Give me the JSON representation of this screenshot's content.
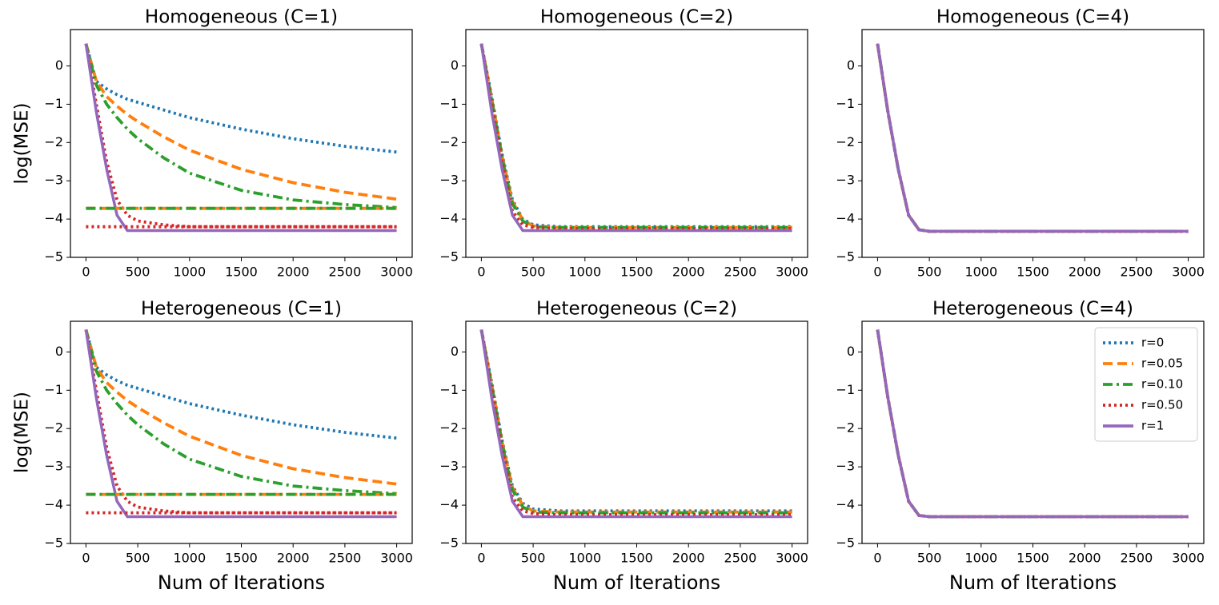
{
  "chart_data": [
    {
      "type": "line",
      "title": "Homogeneous (C=1)",
      "ylabel": "log(MSE)",
      "x": [
        0,
        100,
        200,
        300,
        400,
        500,
        750,
        1000,
        1500,
        2000,
        2500,
        3000
      ],
      "xlim": [
        -150,
        3150
      ],
      "xticks": [
        0,
        500,
        1000,
        1500,
        2000,
        2500,
        3000
      ],
      "ylim": [
        -5,
        0.95
      ],
      "yticks": [
        {
          "value": -5,
          "label": "−5"
        },
        {
          "value": -4,
          "label": "−4"
        },
        {
          "value": -3,
          "label": "−3"
        },
        {
          "value": -2,
          "label": "−2"
        },
        {
          "value": -1,
          "label": "−1"
        },
        0
      ],
      "series": [
        {
          "name": "r=0",
          "color": "#1f77b4",
          "dash": "dotted",
          "values": [
            0.58,
            -0.4,
            -0.6,
            -0.75,
            -0.87,
            -0.95,
            -1.15,
            -1.35,
            -1.65,
            -1.9,
            -2.1,
            -2.25
          ]
        },
        {
          "name": "r=0.05",
          "color": "#ff7f0e",
          "dash": "dashed",
          "values": [
            0.58,
            -0.4,
            -0.8,
            -1.05,
            -1.27,
            -1.45,
            -1.85,
            -2.2,
            -2.7,
            -3.05,
            -3.3,
            -3.48
          ]
        },
        {
          "name": "r=0.10",
          "color": "#2ca02c",
          "dash": "dashdot",
          "values": [
            0.58,
            -0.5,
            -1.0,
            -1.35,
            -1.65,
            -1.9,
            -2.4,
            -2.8,
            -3.25,
            -3.5,
            -3.62,
            -3.7
          ]
        },
        {
          "name": "r=0.50",
          "color": "#d62728",
          "dash": "dotted",
          "values": [
            0.58,
            -1.0,
            -2.5,
            -3.5,
            -3.9,
            -4.05,
            -4.15,
            -4.2,
            -4.2,
            -4.2,
            -4.2,
            -4.2
          ]
        },
        {
          "name": "r=1",
          "color": "#9467bd",
          "dash": "solid",
          "values": [
            0.58,
            -1.2,
            -2.7,
            -3.9,
            -4.3,
            -4.3,
            -4.3,
            -4.3,
            -4.3,
            -4.3,
            -4.3,
            -4.3
          ]
        },
        {
          "color": "#ff7f0e",
          "dash": "dashed",
          "x": [
            0,
            3000
          ],
          "values": [
            -3.72,
            -3.72
          ]
        },
        {
          "color": "#2ca02c",
          "dash": "dashdot",
          "x": [
            0,
            3000
          ],
          "values": [
            -3.72,
            -3.72
          ]
        },
        {
          "color": "#d62728",
          "dash": "dotted",
          "x": [
            0,
            3000
          ],
          "values": [
            -4.2,
            -4.2
          ]
        }
      ]
    },
    {
      "type": "line",
      "title": "Homogeneous (C=2)",
      "x": [
        0,
        100,
        200,
        300,
        400,
        500,
        750,
        1000,
        1500,
        2000,
        2500,
        3000
      ],
      "xlim": [
        -150,
        3150
      ],
      "xticks": [
        0,
        500,
        1000,
        1500,
        2000,
        2500,
        3000
      ],
      "ylim": [
        -5,
        0.95
      ],
      "yticks": [
        {
          "value": -5,
          "label": "−5"
        },
        {
          "value": -4,
          "label": "−4"
        },
        {
          "value": -3,
          "label": "−3"
        },
        {
          "value": -2,
          "label": "−2"
        },
        {
          "value": -1,
          "label": "−1"
        },
        0
      ],
      "series": [
        {
          "name": "r=0",
          "color": "#1f77b4",
          "dash": "dotted",
          "values": [
            0.58,
            -0.8,
            -2.3,
            -3.5,
            -4.0,
            -4.15,
            -4.2,
            -4.2,
            -4.2,
            -4.2,
            -4.2,
            -4.2
          ]
        },
        {
          "name": "r=0.05",
          "color": "#ff7f0e",
          "dash": "dashed",
          "values": [
            0.58,
            -0.85,
            -2.35,
            -3.55,
            -4.02,
            -4.18,
            -4.22,
            -4.22,
            -4.22,
            -4.22,
            -4.22,
            -4.22
          ]
        },
        {
          "name": "r=0.10",
          "color": "#2ca02c",
          "dash": "dashdot",
          "values": [
            0.58,
            -0.9,
            -2.4,
            -3.6,
            -4.05,
            -4.2,
            -4.22,
            -4.22,
            -4.22,
            -4.22,
            -4.22,
            -4.22
          ]
        },
        {
          "name": "r=0.50",
          "color": "#d62728",
          "dash": "dotted",
          "values": [
            0.58,
            -1.0,
            -2.5,
            -3.8,
            -4.15,
            -4.22,
            -4.25,
            -4.25,
            -4.25,
            -4.25,
            -4.25,
            -4.25
          ]
        },
        {
          "name": "r=1",
          "color": "#9467bd",
          "dash": "solid",
          "values": [
            0.58,
            -1.2,
            -2.7,
            -3.9,
            -4.3,
            -4.3,
            -4.3,
            -4.3,
            -4.3,
            -4.3,
            -4.3,
            -4.3
          ]
        }
      ]
    },
    {
      "type": "line",
      "title": "Homogeneous (C=4)",
      "x": [
        0,
        100,
        200,
        300,
        400,
        500,
        750,
        1000,
        1500,
        2000,
        2500,
        3000
      ],
      "xlim": [
        -150,
        3150
      ],
      "xticks": [
        0,
        500,
        1000,
        1500,
        2000,
        2500,
        3000
      ],
      "ylim": [
        -5,
        0.95
      ],
      "yticks": [
        {
          "value": -5,
          "label": "−5"
        },
        {
          "value": -4,
          "label": "−4"
        },
        {
          "value": -3,
          "label": "−3"
        },
        {
          "value": -2,
          "label": "−2"
        },
        {
          "value": -1,
          "label": "−1"
        },
        0
      ],
      "series": [
        {
          "name": "r=0",
          "color": "#1f77b4",
          "dash": "dotted",
          "values": [
            0.58,
            -1.2,
            -2.7,
            -3.9,
            -4.28,
            -4.32,
            -4.32,
            -4.32,
            -4.32,
            -4.32,
            -4.32,
            -4.32
          ]
        },
        {
          "name": "r=0.05",
          "color": "#ff7f0e",
          "dash": "dashed",
          "values": [
            0.58,
            -1.2,
            -2.7,
            -3.9,
            -4.28,
            -4.32,
            -4.32,
            -4.32,
            -4.32,
            -4.32,
            -4.32,
            -4.32
          ]
        },
        {
          "name": "r=0.10",
          "color": "#2ca02c",
          "dash": "dashdot",
          "values": [
            0.58,
            -1.2,
            -2.7,
            -3.9,
            -4.28,
            -4.32,
            -4.32,
            -4.32,
            -4.32,
            -4.32,
            -4.32,
            -4.32
          ]
        },
        {
          "name": "r=0.50",
          "color": "#d62728",
          "dash": "dotted",
          "values": [
            0.58,
            -1.2,
            -2.7,
            -3.9,
            -4.28,
            -4.32,
            -4.32,
            -4.32,
            -4.32,
            -4.32,
            -4.32,
            -4.32
          ]
        },
        {
          "name": "r=1",
          "color": "#9467bd",
          "dash": "solid",
          "values": [
            0.58,
            -1.2,
            -2.7,
            -3.9,
            -4.28,
            -4.32,
            -4.32,
            -4.32,
            -4.32,
            -4.32,
            -4.32,
            -4.32
          ]
        }
      ]
    },
    {
      "type": "line",
      "title": "Heterogeneous (C=1)",
      "ylabel": "log(MSE)",
      "xlabel": "Num of Iterations",
      "x": [
        0,
        100,
        200,
        300,
        400,
        500,
        750,
        1000,
        1500,
        2000,
        2500,
        3000
      ],
      "xlim": [
        -150,
        3150
      ],
      "xticks": [
        0,
        500,
        1000,
        1500,
        2000,
        2500,
        3000
      ],
      "ylim": [
        -5,
        0.8
      ],
      "yticks": [
        {
          "value": -5,
          "label": "−5"
        },
        {
          "value": -4,
          "label": "−4"
        },
        {
          "value": -3,
          "label": "−3"
        },
        {
          "value": -2,
          "label": "−2"
        },
        {
          "value": -1,
          "label": "−1"
        },
        0
      ],
      "series": [
        {
          "name": "r=0",
          "color": "#1f77b4",
          "dash": "dotted",
          "values": [
            0.58,
            -0.4,
            -0.6,
            -0.75,
            -0.87,
            -0.95,
            -1.15,
            -1.35,
            -1.65,
            -1.9,
            -2.1,
            -2.25
          ]
        },
        {
          "name": "r=0.05",
          "color": "#ff7f0e",
          "dash": "dashed",
          "values": [
            0.58,
            -0.4,
            -0.8,
            -1.05,
            -1.27,
            -1.45,
            -1.85,
            -2.2,
            -2.7,
            -3.05,
            -3.28,
            -3.45
          ]
        },
        {
          "name": "r=0.10",
          "color": "#2ca02c",
          "dash": "dashdot",
          "values": [
            0.58,
            -0.5,
            -1.0,
            -1.35,
            -1.65,
            -1.9,
            -2.4,
            -2.8,
            -3.25,
            -3.5,
            -3.62,
            -3.7
          ]
        },
        {
          "name": "r=0.50",
          "color": "#d62728",
          "dash": "dotted",
          "values": [
            0.58,
            -1.0,
            -2.5,
            -3.5,
            -3.9,
            -4.05,
            -4.15,
            -4.2,
            -4.2,
            -4.2,
            -4.2,
            -4.2
          ]
        },
        {
          "name": "r=1",
          "color": "#9467bd",
          "dash": "solid",
          "values": [
            0.58,
            -1.2,
            -2.7,
            -3.9,
            -4.3,
            -4.3,
            -4.3,
            -4.3,
            -4.3,
            -4.3,
            -4.3,
            -4.3
          ]
        },
        {
          "color": "#ff7f0e",
          "dash": "dashed",
          "x": [
            0,
            3000
          ],
          "values": [
            -3.72,
            -3.72
          ]
        },
        {
          "color": "#2ca02c",
          "dash": "dashdot",
          "x": [
            0,
            3000
          ],
          "values": [
            -3.72,
            -3.72
          ]
        },
        {
          "color": "#d62728",
          "dash": "dotted",
          "x": [
            0,
            3000
          ],
          "values": [
            -4.2,
            -4.2
          ]
        }
      ]
    },
    {
      "type": "line",
      "title": "Heterogeneous (C=2)",
      "xlabel": "Num of Iterations",
      "x": [
        0,
        100,
        200,
        300,
        400,
        500,
        750,
        1000,
        1500,
        2000,
        2500,
        3000
      ],
      "xlim": [
        -150,
        3150
      ],
      "xticks": [
        0,
        500,
        1000,
        1500,
        2000,
        2500,
        3000
      ],
      "ylim": [
        -5,
        0.8
      ],
      "yticks": [
        {
          "value": -5,
          "label": "−5"
        },
        {
          "value": -4,
          "label": "−4"
        },
        {
          "value": -3,
          "label": "−3"
        },
        {
          "value": -2,
          "label": "−2"
        },
        {
          "value": -1,
          "label": "−1"
        },
        0
      ],
      "series": [
        {
          "name": "r=0",
          "color": "#1f77b4",
          "dash": "dotted",
          "values": [
            0.58,
            -0.8,
            -2.3,
            -3.5,
            -3.95,
            -4.1,
            -4.15,
            -4.15,
            -4.15,
            -4.15,
            -4.15,
            -4.15
          ]
        },
        {
          "name": "r=0.05",
          "color": "#ff7f0e",
          "dash": "dashed",
          "values": [
            0.58,
            -0.85,
            -2.35,
            -3.55,
            -4.0,
            -4.15,
            -4.18,
            -4.18,
            -4.18,
            -4.18,
            -4.18,
            -4.18
          ]
        },
        {
          "name": "r=0.10",
          "color": "#2ca02c",
          "dash": "dashdot",
          "values": [
            0.58,
            -0.9,
            -2.4,
            -3.6,
            -4.05,
            -4.18,
            -4.2,
            -4.2,
            -4.2,
            -4.2,
            -4.2,
            -4.2
          ]
        },
        {
          "name": "r=0.50",
          "color": "#d62728",
          "dash": "dotted",
          "values": [
            0.58,
            -1.0,
            -2.5,
            -3.8,
            -4.15,
            -4.22,
            -4.25,
            -4.25,
            -4.25,
            -4.25,
            -4.25,
            -4.25
          ]
        },
        {
          "name": "r=1",
          "color": "#9467bd",
          "dash": "solid",
          "values": [
            0.58,
            -1.2,
            -2.7,
            -3.9,
            -4.3,
            -4.3,
            -4.3,
            -4.3,
            -4.3,
            -4.3,
            -4.3,
            -4.3
          ]
        }
      ]
    },
    {
      "type": "line",
      "title": "Heterogeneous (C=4)",
      "xlabel": "Num of Iterations",
      "legend": "upper right",
      "x": [
        0,
        100,
        200,
        300,
        400,
        500,
        750,
        1000,
        1500,
        2000,
        2500,
        3000
      ],
      "xlim": [
        -150,
        3150
      ],
      "xticks": [
        0,
        500,
        1000,
        1500,
        2000,
        2500,
        3000
      ],
      "ylim": [
        -5,
        0.8
      ],
      "yticks": [
        {
          "value": -5,
          "label": "−5"
        },
        {
          "value": -4,
          "label": "−4"
        },
        {
          "value": -3,
          "label": "−3"
        },
        {
          "value": -2,
          "label": "−2"
        },
        {
          "value": -1,
          "label": "−1"
        },
        0
      ],
      "series": [
        {
          "name": "r=0",
          "color": "#1f77b4",
          "dash": "dotted",
          "values": [
            0.58,
            -1.2,
            -2.7,
            -3.9,
            -4.27,
            -4.3,
            -4.3,
            -4.3,
            -4.3,
            -4.3,
            -4.3,
            -4.3
          ]
        },
        {
          "name": "r=0.05",
          "color": "#ff7f0e",
          "dash": "dashed",
          "values": [
            0.58,
            -1.2,
            -2.7,
            -3.9,
            -4.27,
            -4.3,
            -4.3,
            -4.3,
            -4.3,
            -4.3,
            -4.3,
            -4.3
          ]
        },
        {
          "name": "r=0.10",
          "color": "#2ca02c",
          "dash": "dashdot",
          "values": [
            0.58,
            -1.2,
            -2.7,
            -3.9,
            -4.27,
            -4.3,
            -4.3,
            -4.3,
            -4.3,
            -4.3,
            -4.3,
            -4.3
          ]
        },
        {
          "name": "r=0.50",
          "color": "#d62728",
          "dash": "dotted",
          "values": [
            0.58,
            -1.2,
            -2.7,
            -3.9,
            -4.27,
            -4.3,
            -4.3,
            -4.3,
            -4.3,
            -4.3,
            -4.3,
            -4.3
          ]
        },
        {
          "name": "r=1",
          "color": "#9467bd",
          "dash": "solid",
          "values": [
            0.58,
            -1.2,
            -2.7,
            -3.9,
            -4.27,
            -4.3,
            -4.3,
            -4.3,
            -4.3,
            -4.3,
            -4.3,
            -4.3
          ]
        }
      ]
    }
  ]
}
